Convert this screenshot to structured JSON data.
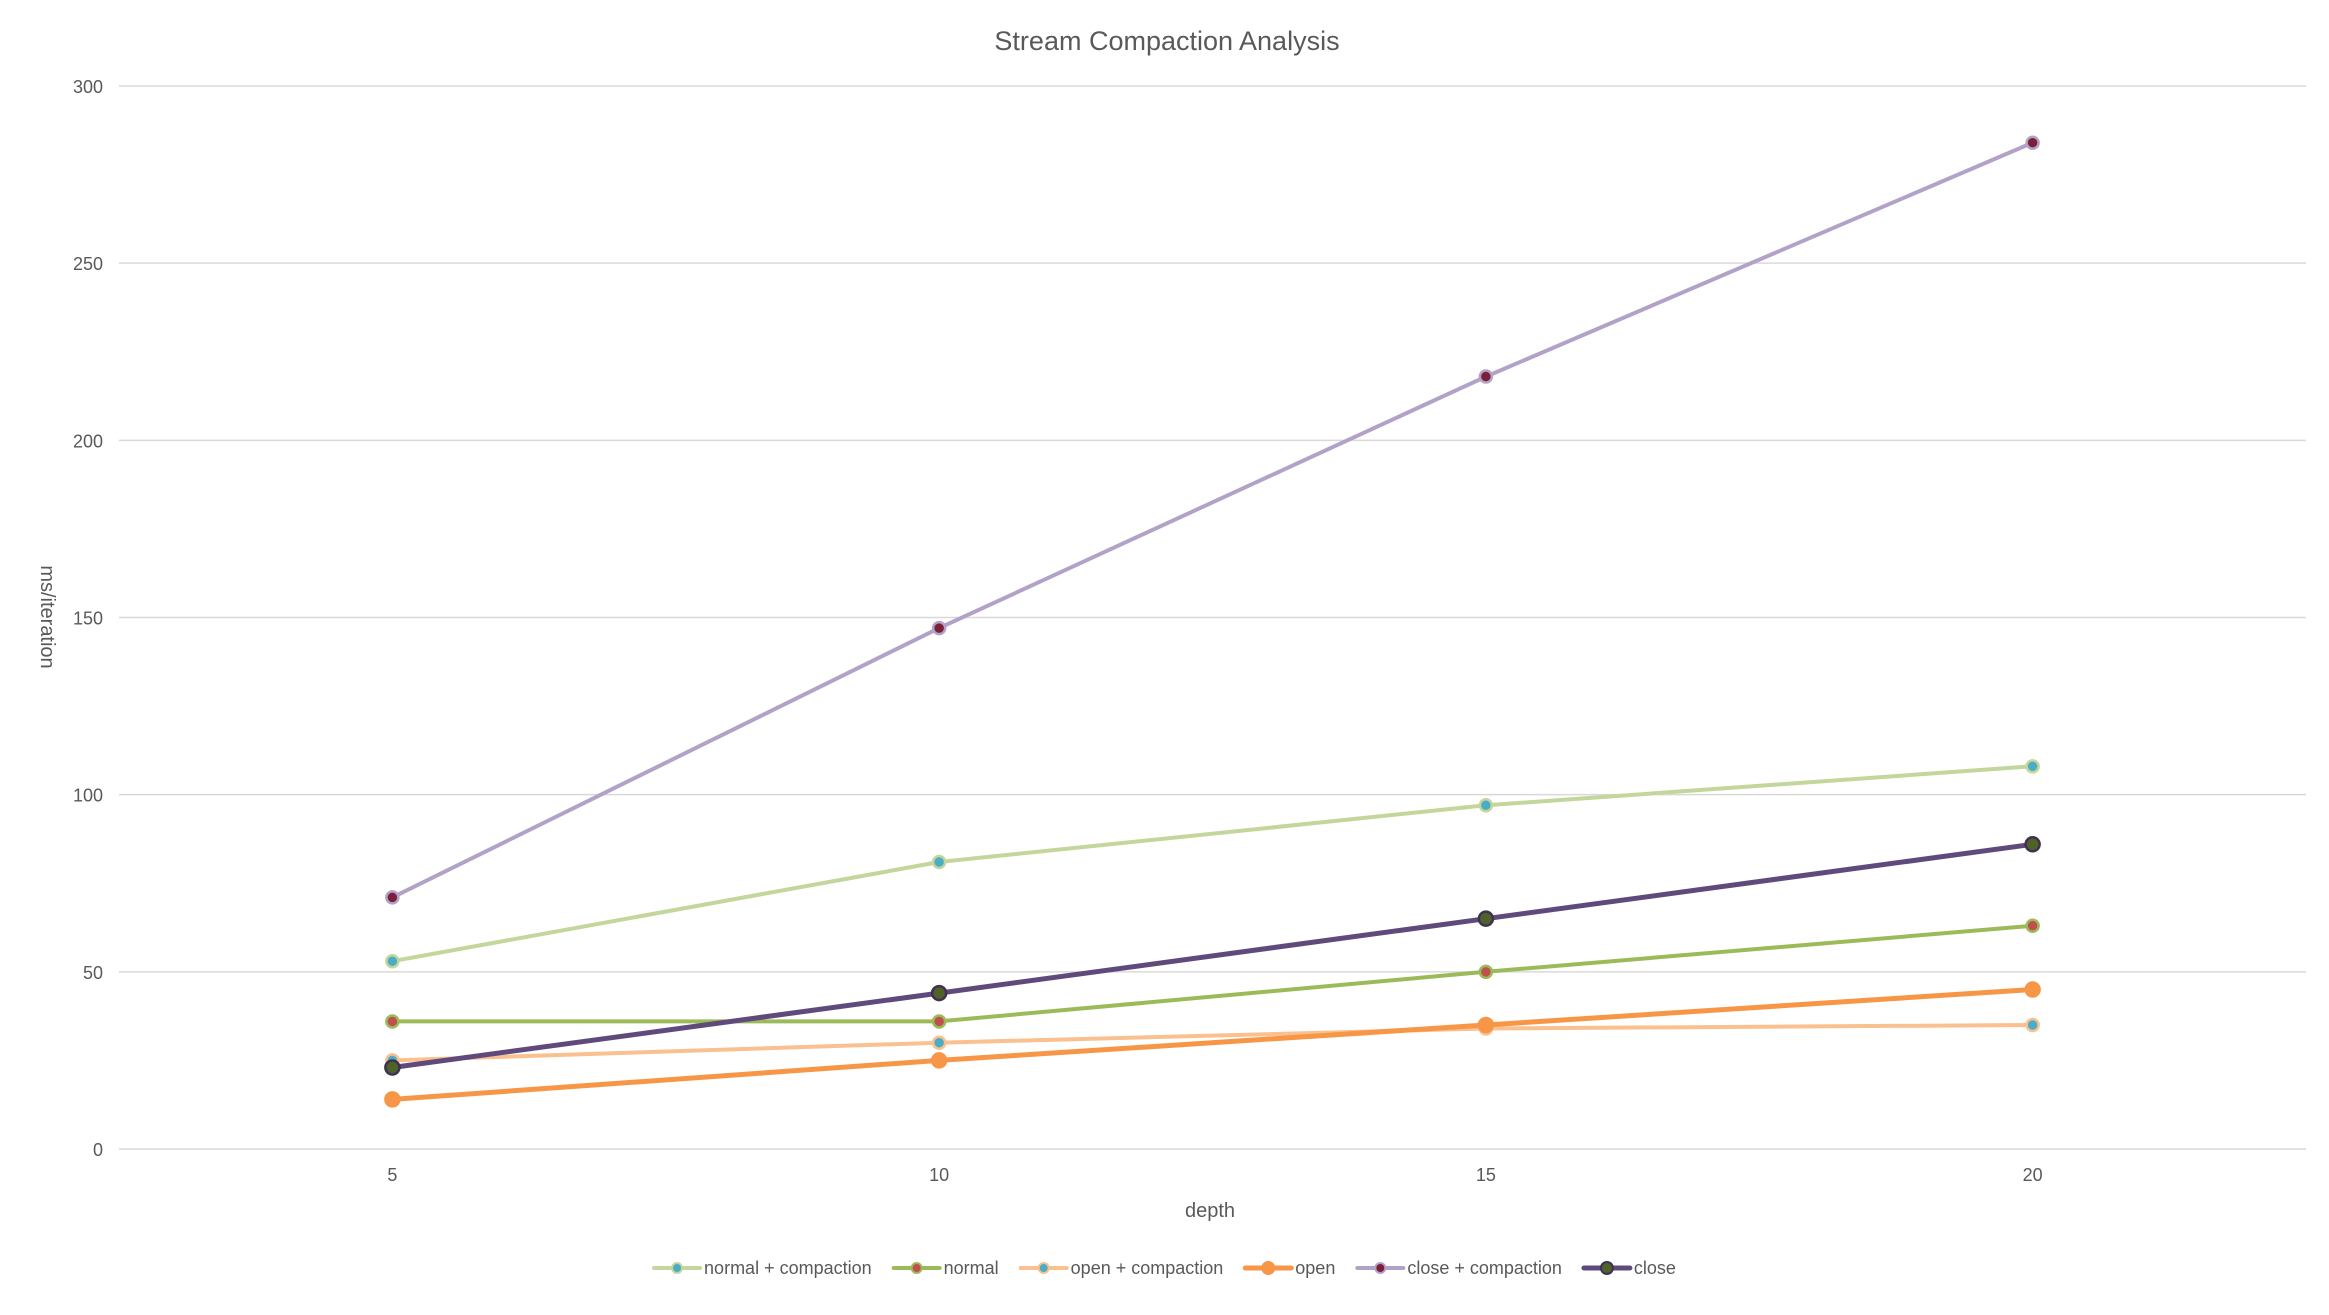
{
  "chart_data": {
    "type": "line",
    "title": "Stream Compaction Analysis",
    "xlabel": "depth",
    "ylabel": "ms/iteration",
    "x": [
      5,
      10,
      15,
      20
    ],
    "xlim": [
      2.5,
      22.5
    ],
    "ylim": [
      0,
      300
    ],
    "yticks": [
      0,
      50,
      100,
      150,
      200,
      250,
      300
    ],
    "grid": true,
    "legend": "bottom",
    "series": [
      {
        "name": "normal + compaction",
        "values": [
          53,
          81,
          97,
          108
        ],
        "color": "#c3d69b",
        "marker_fill": "#4bacc6",
        "marker_stroke": "#c3d69b",
        "line_width": 4,
        "marker_size": 6
      },
      {
        "name": "normal",
        "values": [
          36,
          36,
          50,
          63
        ],
        "color": "#9bbb59",
        "marker_fill": "#c0504d",
        "marker_stroke": "#9bbb59",
        "line_width": 4,
        "marker_size": 6
      },
      {
        "name": "open + compaction",
        "values": [
          25,
          30,
          34,
          35
        ],
        "color": "#fac090",
        "marker_fill": "#4bacc6",
        "marker_stroke": "#fac090",
        "line_width": 4,
        "marker_size": 6
      },
      {
        "name": "open",
        "values": [
          14,
          25,
          35,
          45
        ],
        "color": "#f79646",
        "marker_fill": "#f79646",
        "marker_stroke": "#f79646",
        "line_width": 5,
        "marker_size": 7
      },
      {
        "name": "close + compaction",
        "values": [
          71,
          147,
          218,
          284
        ],
        "color": "#b3a2c7",
        "marker_fill": "#7b1f3a",
        "marker_stroke": "#b3a2c7",
        "line_width": 4,
        "marker_size": 6
      },
      {
        "name": "close",
        "values": [
          23,
          44,
          65,
          86
        ],
        "color": "#604a7b",
        "marker_fill": "#4f6228",
        "marker_stroke": "#3f3151",
        "line_width": 5,
        "marker_size": 7
      }
    ]
  }
}
